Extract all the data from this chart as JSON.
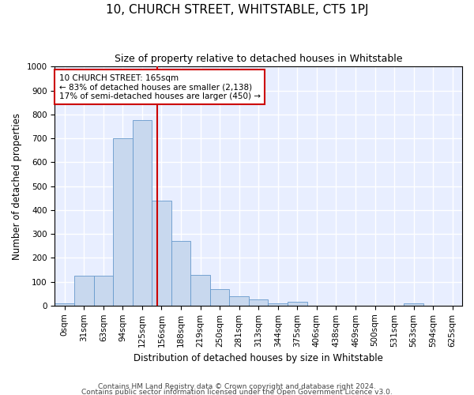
{
  "title": "10, CHURCH STREET, WHITSTABLE, CT5 1PJ",
  "subtitle": "Size of property relative to detached houses in Whitstable",
  "xlabel": "Distribution of detached houses by size in Whitstable",
  "ylabel": "Number of detached properties",
  "bin_labels": [
    "0sqm",
    "31sqm",
    "63sqm",
    "94sqm",
    "125sqm",
    "156sqm",
    "188sqm",
    "219sqm",
    "250sqm",
    "281sqm",
    "313sqm",
    "344sqm",
    "375sqm",
    "406sqm",
    "438sqm",
    "469sqm",
    "500sqm",
    "531sqm",
    "563sqm",
    "594sqm",
    "625sqm"
  ],
  "bar_values": [
    10,
    125,
    125,
    700,
    775,
    440,
    270,
    130,
    70,
    40,
    25,
    10,
    15,
    0,
    0,
    0,
    0,
    0,
    10,
    0,
    0
  ],
  "bar_color": "#c8d8ee",
  "bar_edge_color": "#6699cc",
  "ylim": [
    0,
    1000
  ],
  "yticks": [
    0,
    100,
    200,
    300,
    400,
    500,
    600,
    700,
    800,
    900,
    1000
  ],
  "property_line_x": 5.28,
  "property_line_color": "#cc0000",
  "annotation_line1": "10 CHURCH STREET: 165sqm",
  "annotation_line2": "← 83% of detached houses are smaller (2,138)",
  "annotation_line3": "17% of semi-detached houses are larger (450) →",
  "annotation_box_color": "#ffffff",
  "annotation_box_edge": "#cc0000",
  "footer1": "Contains HM Land Registry data © Crown copyright and database right 2024.",
  "footer2": "Contains public sector information licensed under the Open Government Licence v3.0.",
  "plot_bg_color": "#e8eeff",
  "fig_bg_color": "#ffffff",
  "grid_color": "#ffffff",
  "title_fontsize": 11,
  "subtitle_fontsize": 9,
  "axis_label_fontsize": 8.5,
  "tick_fontsize": 7.5,
  "annotation_fontsize": 7.5,
  "footer_fontsize": 6.5
}
